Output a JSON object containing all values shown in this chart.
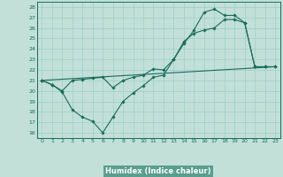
{
  "xlabel": "Humidex (Indice chaleur)",
  "bg_color": "#c2e0d8",
  "grid_color": "#9ecec4",
  "line_color": "#1a6b5a",
  "axis_bg": "#5a9e90",
  "xlim": [
    -0.5,
    23.5
  ],
  "ylim": [
    15.5,
    28.5
  ],
  "xticks": [
    0,
    1,
    2,
    3,
    4,
    5,
    6,
    7,
    8,
    9,
    10,
    11,
    12,
    13,
    14,
    15,
    16,
    17,
    18,
    19,
    20,
    21,
    22,
    23
  ],
  "yticks": [
    16,
    17,
    18,
    19,
    20,
    21,
    22,
    23,
    24,
    25,
    26,
    27,
    28
  ],
  "line1_x": [
    0,
    1,
    2,
    3,
    4,
    5,
    6,
    7,
    8,
    9,
    10,
    11,
    12,
    13,
    14,
    15,
    16,
    17,
    18,
    19,
    20,
    21,
    22,
    23
  ],
  "line1_y": [
    21.0,
    20.6,
    20.0,
    21.0,
    21.1,
    21.2,
    21.3,
    20.3,
    21.0,
    21.3,
    21.5,
    22.1,
    22.0,
    23.0,
    24.7,
    25.5,
    25.8,
    26.0,
    26.8,
    26.8,
    26.5,
    22.3,
    22.3,
    22.3
  ],
  "line2_x": [
    0,
    1,
    2,
    3,
    4,
    5,
    6,
    7,
    8,
    9,
    10,
    11,
    12,
    13,
    14,
    15,
    16,
    17,
    18,
    19,
    20,
    21,
    22,
    23
  ],
  "line2_y": [
    21.0,
    20.6,
    19.9,
    18.2,
    17.5,
    17.1,
    16.0,
    17.5,
    19.0,
    19.8,
    20.5,
    21.3,
    21.5,
    23.0,
    24.5,
    25.8,
    27.5,
    27.8,
    27.2,
    27.2,
    26.5,
    22.3,
    22.3,
    22.3
  ],
  "line3_x": [
    0,
    23
  ],
  "line3_y": [
    21.0,
    22.3
  ]
}
